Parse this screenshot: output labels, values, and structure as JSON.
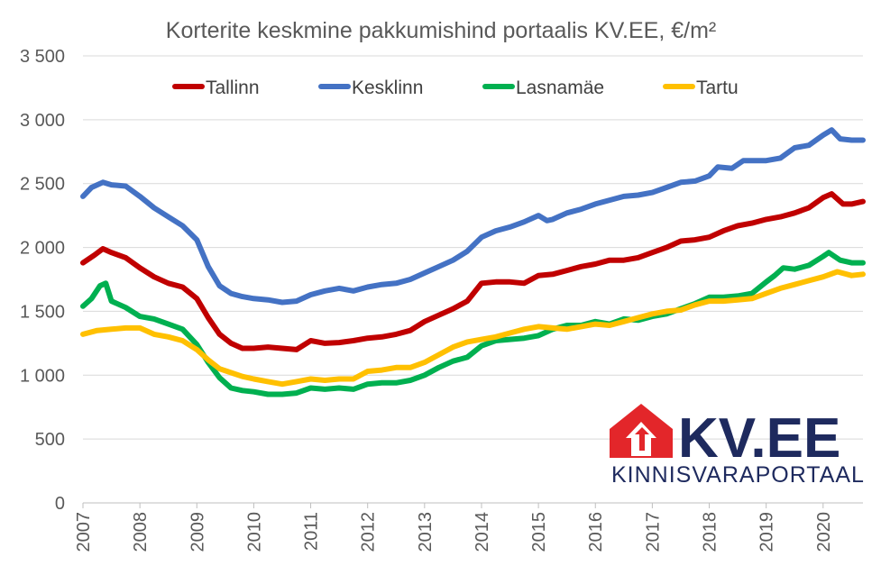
{
  "chart_data": {
    "type": "line",
    "title": "Korterite keskmine pakkumishind portaalis KV.EE, €/m²",
    "xlabel": "",
    "ylabel": "",
    "ylim": [
      0,
      3500
    ],
    "xlim": [
      2007,
      2020.7
    ],
    "y_ticks": [
      0,
      500,
      1000,
      1500,
      2000,
      2500,
      3000,
      3500
    ],
    "y_tick_labels": [
      "0",
      "500",
      "1 000",
      "1 500",
      "2 000",
      "2 500",
      "3 000",
      "3 500"
    ],
    "x_ticks": [
      2007,
      2008,
      2009,
      2010,
      2011,
      2012,
      2013,
      2014,
      2015,
      2016,
      2017,
      2018,
      2019,
      2020
    ],
    "x_tick_labels": [
      "2007",
      "2008",
      "2009",
      "2010",
      "2011",
      "2012",
      "2013",
      "2014",
      "2015",
      "2016",
      "2017",
      "2018",
      "2019",
      "2020"
    ],
    "grid": true,
    "legend_position": "top",
    "series": [
      {
        "name": "Tallinn",
        "color": "#c00000",
        "points": [
          [
            2007.0,
            1880
          ],
          [
            2007.2,
            1940
          ],
          [
            2007.35,
            1990
          ],
          [
            2007.5,
            1960
          ],
          [
            2007.75,
            1920
          ],
          [
            2008.0,
            1840
          ],
          [
            2008.25,
            1770
          ],
          [
            2008.5,
            1720
          ],
          [
            2008.75,
            1690
          ],
          [
            2009.0,
            1600
          ],
          [
            2009.2,
            1450
          ],
          [
            2009.4,
            1320
          ],
          [
            2009.6,
            1250
          ],
          [
            2009.8,
            1210
          ],
          [
            2010.0,
            1210
          ],
          [
            2010.25,
            1220
          ],
          [
            2010.5,
            1210
          ],
          [
            2010.75,
            1200
          ],
          [
            2011.0,
            1270
          ],
          [
            2011.25,
            1250
          ],
          [
            2011.5,
            1255
          ],
          [
            2011.75,
            1270
          ],
          [
            2012.0,
            1290
          ],
          [
            2012.25,
            1300
          ],
          [
            2012.5,
            1320
          ],
          [
            2012.75,
            1350
          ],
          [
            2013.0,
            1420
          ],
          [
            2013.25,
            1470
          ],
          [
            2013.5,
            1520
          ],
          [
            2013.75,
            1580
          ],
          [
            2014.0,
            1720
          ],
          [
            2014.25,
            1730
          ],
          [
            2014.5,
            1730
          ],
          [
            2014.75,
            1720
          ],
          [
            2015.0,
            1780
          ],
          [
            2015.25,
            1790
          ],
          [
            2015.5,
            1820
          ],
          [
            2015.75,
            1850
          ],
          [
            2016.0,
            1870
          ],
          [
            2016.25,
            1900
          ],
          [
            2016.5,
            1900
          ],
          [
            2016.75,
            1920
          ],
          [
            2017.0,
            1960
          ],
          [
            2017.25,
            2000
          ],
          [
            2017.5,
            2050
          ],
          [
            2017.75,
            2060
          ],
          [
            2018.0,
            2080
          ],
          [
            2018.25,
            2130
          ],
          [
            2018.5,
            2170
          ],
          [
            2018.75,
            2190
          ],
          [
            2019.0,
            2220
          ],
          [
            2019.25,
            2240
          ],
          [
            2019.5,
            2270
          ],
          [
            2019.75,
            2310
          ],
          [
            2020.0,
            2390
          ],
          [
            2020.15,
            2420
          ],
          [
            2020.35,
            2340
          ],
          [
            2020.5,
            2340
          ],
          [
            2020.7,
            2360
          ]
        ]
      },
      {
        "name": "Kesklinn",
        "color": "#4472c4",
        "points": [
          [
            2007.0,
            2400
          ],
          [
            2007.15,
            2470
          ],
          [
            2007.35,
            2510
          ],
          [
            2007.5,
            2490
          ],
          [
            2007.75,
            2480
          ],
          [
            2008.0,
            2400
          ],
          [
            2008.25,
            2310
          ],
          [
            2008.5,
            2240
          ],
          [
            2008.75,
            2170
          ],
          [
            2009.0,
            2060
          ],
          [
            2009.2,
            1850
          ],
          [
            2009.4,
            1700
          ],
          [
            2009.6,
            1640
          ],
          [
            2009.8,
            1615
          ],
          [
            2010.0,
            1600
          ],
          [
            2010.25,
            1590
          ],
          [
            2010.5,
            1570
          ],
          [
            2010.75,
            1580
          ],
          [
            2011.0,
            1630
          ],
          [
            2011.25,
            1660
          ],
          [
            2011.5,
            1680
          ],
          [
            2011.75,
            1660
          ],
          [
            2012.0,
            1690
          ],
          [
            2012.25,
            1710
          ],
          [
            2012.5,
            1720
          ],
          [
            2012.75,
            1750
          ],
          [
            2013.0,
            1800
          ],
          [
            2013.25,
            1850
          ],
          [
            2013.5,
            1900
          ],
          [
            2013.75,
            1970
          ],
          [
            2014.0,
            2080
          ],
          [
            2014.25,
            2130
          ],
          [
            2014.5,
            2160
          ],
          [
            2014.75,
            2200
          ],
          [
            2015.0,
            2250
          ],
          [
            2015.15,
            2210
          ],
          [
            2015.25,
            2220
          ],
          [
            2015.5,
            2270
          ],
          [
            2015.75,
            2300
          ],
          [
            2016.0,
            2340
          ],
          [
            2016.25,
            2370
          ],
          [
            2016.5,
            2400
          ],
          [
            2016.75,
            2410
          ],
          [
            2017.0,
            2430
          ],
          [
            2017.25,
            2470
          ],
          [
            2017.5,
            2510
          ],
          [
            2017.75,
            2520
          ],
          [
            2018.0,
            2560
          ],
          [
            2018.15,
            2630
          ],
          [
            2018.4,
            2620
          ],
          [
            2018.6,
            2680
          ],
          [
            2018.8,
            2680
          ],
          [
            2019.0,
            2680
          ],
          [
            2019.25,
            2700
          ],
          [
            2019.5,
            2780
          ],
          [
            2019.75,
            2800
          ],
          [
            2020.0,
            2880
          ],
          [
            2020.15,
            2920
          ],
          [
            2020.3,
            2850
          ],
          [
            2020.5,
            2840
          ],
          [
            2020.7,
            2840
          ]
        ]
      },
      {
        "name": "Lasnamäe",
        "color": "#00b050",
        "points": [
          [
            2007.0,
            1540
          ],
          [
            2007.15,
            1600
          ],
          [
            2007.3,
            1700
          ],
          [
            2007.4,
            1720
          ],
          [
            2007.5,
            1580
          ],
          [
            2007.75,
            1530
          ],
          [
            2008.0,
            1460
          ],
          [
            2008.25,
            1440
          ],
          [
            2008.5,
            1400
          ],
          [
            2008.75,
            1360
          ],
          [
            2009.0,
            1240
          ],
          [
            2009.2,
            1100
          ],
          [
            2009.4,
            980
          ],
          [
            2009.6,
            900
          ],
          [
            2009.8,
            880
          ],
          [
            2010.0,
            870
          ],
          [
            2010.25,
            850
          ],
          [
            2010.5,
            850
          ],
          [
            2010.75,
            860
          ],
          [
            2011.0,
            900
          ],
          [
            2011.25,
            890
          ],
          [
            2011.5,
            900
          ],
          [
            2011.75,
            890
          ],
          [
            2012.0,
            930
          ],
          [
            2012.25,
            940
          ],
          [
            2012.5,
            940
          ],
          [
            2012.75,
            960
          ],
          [
            2013.0,
            1000
          ],
          [
            2013.25,
            1060
          ],
          [
            2013.5,
            1110
          ],
          [
            2013.75,
            1140
          ],
          [
            2014.0,
            1230
          ],
          [
            2014.25,
            1270
          ],
          [
            2014.5,
            1280
          ],
          [
            2014.75,
            1290
          ],
          [
            2015.0,
            1310
          ],
          [
            2015.25,
            1360
          ],
          [
            2015.5,
            1390
          ],
          [
            2015.75,
            1390
          ],
          [
            2016.0,
            1420
          ],
          [
            2016.25,
            1400
          ],
          [
            2016.5,
            1440
          ],
          [
            2016.75,
            1430
          ],
          [
            2017.0,
            1460
          ],
          [
            2017.25,
            1480
          ],
          [
            2017.5,
            1520
          ],
          [
            2017.75,
            1560
          ],
          [
            2018.0,
            1610
          ],
          [
            2018.25,
            1610
          ],
          [
            2018.5,
            1620
          ],
          [
            2018.75,
            1640
          ],
          [
            2019.0,
            1730
          ],
          [
            2019.15,
            1780
          ],
          [
            2019.3,
            1840
          ],
          [
            2019.5,
            1830
          ],
          [
            2019.75,
            1860
          ],
          [
            2020.0,
            1930
          ],
          [
            2020.1,
            1960
          ],
          [
            2020.3,
            1900
          ],
          [
            2020.5,
            1880
          ],
          [
            2020.7,
            1880
          ]
        ]
      },
      {
        "name": "Tartu",
        "color": "#ffc000",
        "points": [
          [
            2007.0,
            1320
          ],
          [
            2007.25,
            1350
          ],
          [
            2007.5,
            1360
          ],
          [
            2007.75,
            1370
          ],
          [
            2008.0,
            1370
          ],
          [
            2008.25,
            1320
          ],
          [
            2008.5,
            1300
          ],
          [
            2008.75,
            1270
          ],
          [
            2009.0,
            1200
          ],
          [
            2009.2,
            1120
          ],
          [
            2009.4,
            1050
          ],
          [
            2009.6,
            1020
          ],
          [
            2009.8,
            990
          ],
          [
            2010.0,
            970
          ],
          [
            2010.25,
            950
          ],
          [
            2010.5,
            930
          ],
          [
            2010.75,
            950
          ],
          [
            2011.0,
            970
          ],
          [
            2011.25,
            960
          ],
          [
            2011.5,
            970
          ],
          [
            2011.75,
            970
          ],
          [
            2012.0,
            1030
          ],
          [
            2012.25,
            1040
          ],
          [
            2012.5,
            1060
          ],
          [
            2012.75,
            1060
          ],
          [
            2013.0,
            1100
          ],
          [
            2013.25,
            1160
          ],
          [
            2013.5,
            1220
          ],
          [
            2013.75,
            1260
          ],
          [
            2014.0,
            1280
          ],
          [
            2014.25,
            1300
          ],
          [
            2014.5,
            1330
          ],
          [
            2014.75,
            1360
          ],
          [
            2015.0,
            1380
          ],
          [
            2015.25,
            1370
          ],
          [
            2015.5,
            1360
          ],
          [
            2015.75,
            1380
          ],
          [
            2016.0,
            1400
          ],
          [
            2016.25,
            1390
          ],
          [
            2016.5,
            1420
          ],
          [
            2016.75,
            1450
          ],
          [
            2017.0,
            1480
          ],
          [
            2017.25,
            1500
          ],
          [
            2017.5,
            1510
          ],
          [
            2017.75,
            1550
          ],
          [
            2018.0,
            1580
          ],
          [
            2018.25,
            1580
          ],
          [
            2018.5,
            1590
          ],
          [
            2018.75,
            1600
          ],
          [
            2019.0,
            1640
          ],
          [
            2019.25,
            1680
          ],
          [
            2019.5,
            1710
          ],
          [
            2019.75,
            1740
          ],
          [
            2020.0,
            1770
          ],
          [
            2020.25,
            1810
          ],
          [
            2020.5,
            1780
          ],
          [
            2020.7,
            1790
          ]
        ]
      }
    ]
  },
  "logo": {
    "main_text": "KV.EE",
    "sub_text": "KINNISVARAPORTAAL",
    "icon": "house-arrow-icon",
    "icon_color": "#e3262a",
    "text_color": "#1e2a5e"
  }
}
